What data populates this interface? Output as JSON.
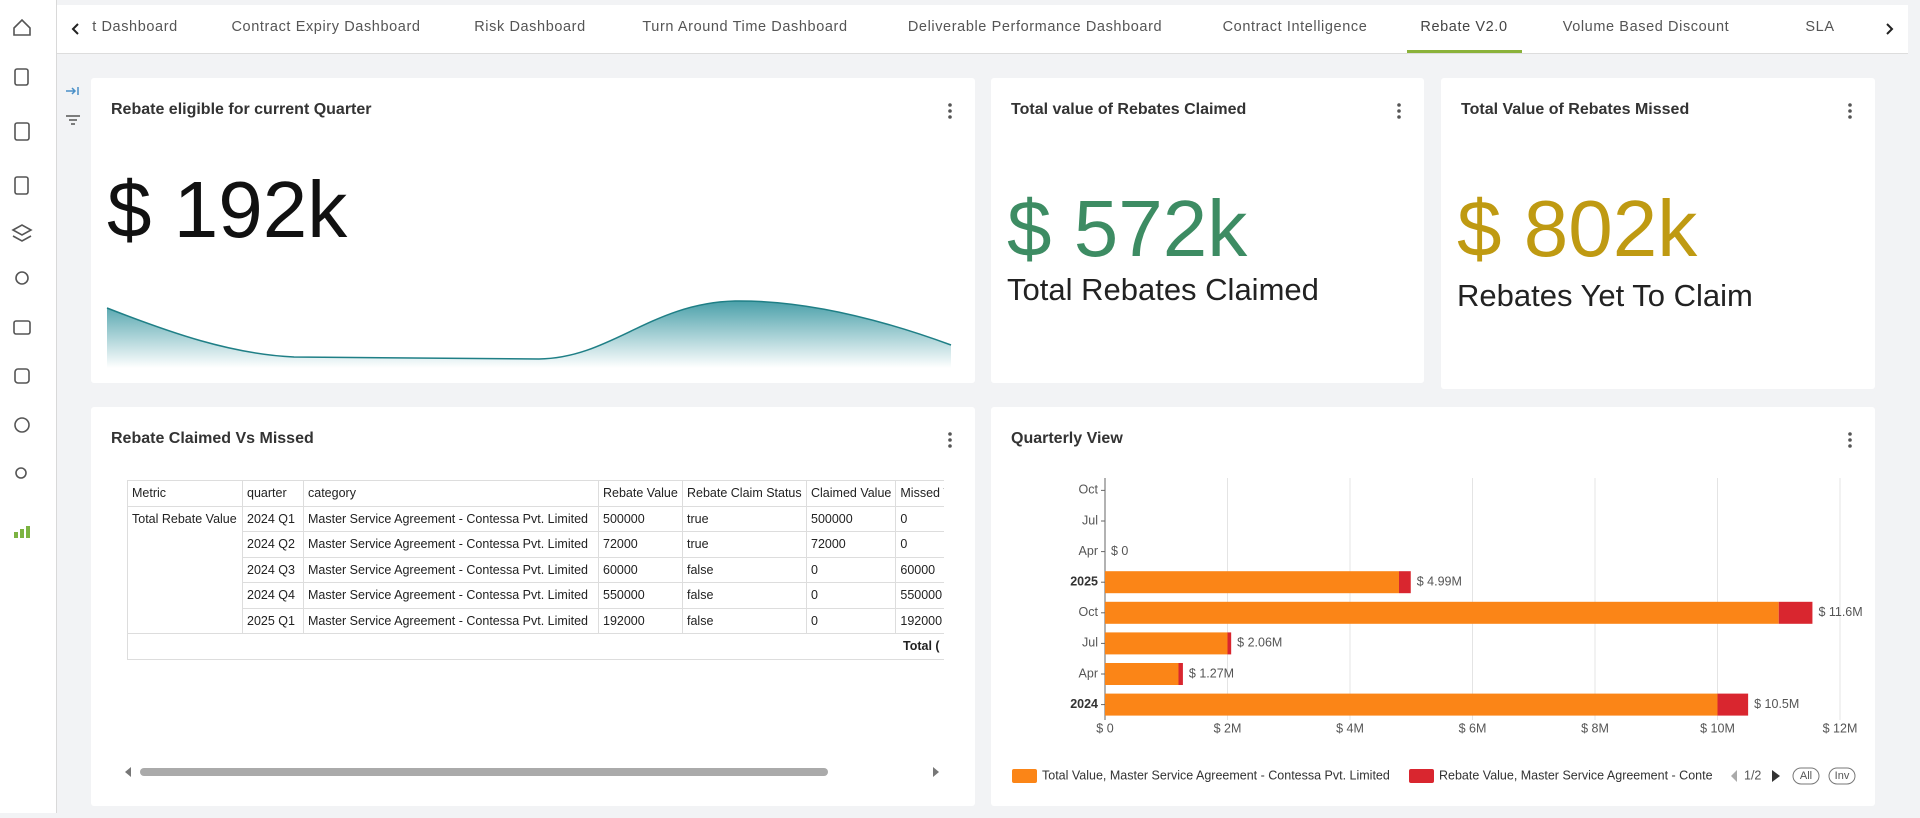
{
  "tabs": [
    "t Dashboard",
    "Contract Expiry Dashboard",
    "Risk Dashboard",
    "Turn Around Time Dashboard",
    "Deliverable Performance Dashboard",
    "Contract Intelligence",
    "Rebate V2.0",
    "Volume Based Discount",
    "SLA"
  ],
  "active_tab": 6,
  "cards": {
    "eligible": {
      "title": "Rebate eligible for current Quarter",
      "value": "$ 192k"
    },
    "claimed": {
      "title": "Total value of Rebates Claimed",
      "value": "$ 572k",
      "subtitle": "Total Rebates Claimed"
    },
    "missed": {
      "title": "Total Value of Rebates Missed",
      "value": "$ 802k",
      "subtitle": "Rebates Yet To Claim"
    },
    "table_card": {
      "title": "Rebate Claimed Vs Missed"
    }
  },
  "table": {
    "header": [
      "Metric",
      "quarter",
      "category",
      "Rebate Value",
      "Rebate Claim Status",
      "Claimed Value",
      "Missed Value"
    ],
    "metric": "Total Rebate Value",
    "rows": [
      [
        "2024 Q1",
        "Master Service Agreement - Contessa Pvt. Limited",
        "500000",
        "true",
        "500000",
        "0"
      ],
      [
        "2024 Q2",
        "Master Service Agreement - Contessa Pvt. Limited",
        "72000",
        "true",
        "72000",
        "0"
      ],
      [
        "2024 Q3",
        "Master Service Agreement - Contessa Pvt. Limited",
        "60000",
        "false",
        "0",
        "60000"
      ],
      [
        "2024 Q4",
        "Master Service Agreement - Contessa Pvt. Limited",
        "550000",
        "false",
        "0",
        "550000"
      ],
      [
        "2025 Q1",
        "Master Service Agreement - Contessa Pvt. Limited",
        "192000",
        "false",
        "0",
        "192000"
      ]
    ],
    "total": "Total ("
  },
  "chart_data": {
    "type": "bar",
    "orientation": "horizontal",
    "stacked": true,
    "title": "Quarterly View",
    "categories": [
      "2024",
      "Apr",
      "Jul",
      "Oct",
      "2025",
      "Apr",
      "Jul",
      "Oct"
    ],
    "series": [
      {
        "name": "Total Value, Master Service Agreement - Contessa Pvt. Limited",
        "color": "#fb8517",
        "values": [
          10000000,
          1200000,
          2000000,
          11000000,
          4800000,
          0,
          null,
          null
        ]
      },
      {
        "name": "Rebate Value, Master Service Agreement - Conte",
        "color": "#d9262f",
        "values": [
          500000,
          72000,
          60000,
          550000,
          192000,
          0,
          null,
          null
        ]
      }
    ],
    "stack_labels": [
      "$ 10.5M",
      "$ 1.27M",
      "$ 2.06M",
      "$ 11.6M",
      "$ 4.99M",
      "$ 0",
      null,
      null
    ],
    "xlim": [
      0,
      12000000
    ],
    "xticks": [
      {
        "value": 0,
        "label": "$ 0"
      },
      {
        "value": 2000000,
        "label": "$ 2M"
      },
      {
        "value": 4000000,
        "label": "$ 4M"
      },
      {
        "value": 6000000,
        "label": "$ 6M"
      },
      {
        "value": 8000000,
        "label": "$ 8M"
      },
      {
        "value": 10000000,
        "label": "$ 10M"
      },
      {
        "value": 12000000,
        "label": "$ 12M"
      }
    ],
    "grid": true,
    "legend_page": "1/2",
    "legend_buttons": [
      "All",
      "Inv"
    ]
  }
}
